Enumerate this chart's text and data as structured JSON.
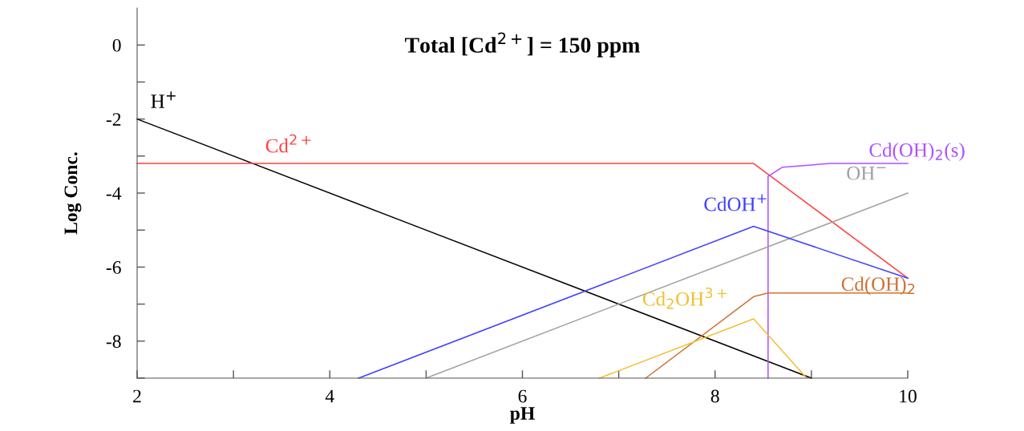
{
  "chart_data": {
    "type": "line",
    "title": "Total [Cd$^{2+}$] = 150 ppm",
    "xlabel": "pH",
    "ylabel": "Log Conc.",
    "xlim": [
      2,
      10
    ],
    "ylim": [
      -9,
      1
    ],
    "xticks": [
      2,
      {
        "value": 3,
        "label": null
      },
      4,
      {
        "value": 5,
        "label": null
      },
      6,
      {
        "value": 7,
        "label": null
      },
      8,
      {
        "value": 9,
        "label": null
      },
      10
    ],
    "yticks": [
      {
        "value": -9,
        "label": null
      },
      -8,
      {
        "value": -7,
        "label": null
      },
      -6,
      {
        "value": -5,
        "label": null
      },
      -4,
      {
        "value": -3,
        "label": null
      },
      -2,
      {
        "value": -1,
        "label": null
      },
      0
    ],
    "grid": false,
    "legend": false,
    "marker": "none",
    "line_style": "solid",
    "series": [
      {
        "name": "H$^{+}$",
        "color": "#000000",
        "x": [
          2,
          9
        ],
        "values": [
          -2,
          -9
        ]
      },
      {
        "name": "Cd$^{2+}$",
        "color": "#ff4040",
        "x": [
          2,
          8.4,
          10
        ],
        "values": [
          -3.2,
          -3.2,
          -6.3
        ]
      },
      {
        "name": "Cd(OH)$_{2}$(s)",
        "color": "#b050ff",
        "x": [
          8.55,
          8.55,
          8.7,
          9.2,
          10
        ],
        "values": [
          -9,
          -3.55,
          -3.3,
          -3.2,
          -3.2
        ]
      },
      {
        "name": "OH$^{−}$",
        "color": "#a0a0a0",
        "x": [
          5,
          10
        ],
        "values": [
          -9,
          -4
        ]
      },
      {
        "name": "CdOH$^{+}$",
        "color": "#4040ff",
        "x": [
          4.3,
          8.4,
          10
        ],
        "values": [
          -9,
          -4.9,
          -6.3
        ]
      },
      {
        "name": "Cd(OH)$_{2}$",
        "color": "#d07030",
        "x": [
          7.28,
          8.4,
          8.55,
          10
        ],
        "values": [
          -9,
          -6.8,
          -6.7,
          -6.7
        ]
      },
      {
        "name": "Cd$_{2}$OH$^{3+}$",
        "color": "#f0c030",
        "x": [
          6.8,
          8.4,
          8.95
        ],
        "values": [
          -9,
          -7.4,
          -9
        ]
      }
    ]
  }
}
